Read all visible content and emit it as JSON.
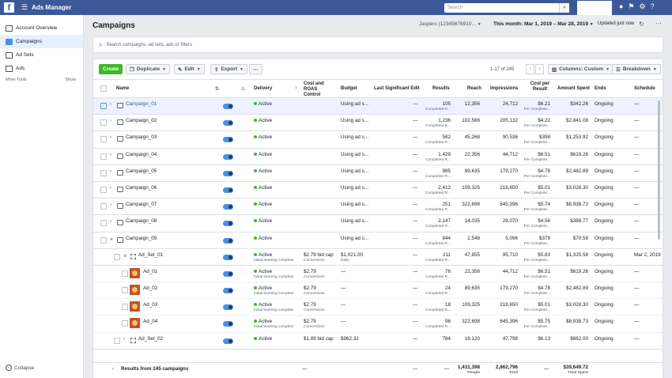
{
  "topbar": {
    "app_name": "Ads Manager",
    "search_placeholder": "Search"
  },
  "sidebar": {
    "items": [
      {
        "label": "Account Overview",
        "icon": "account-overview-icon"
      },
      {
        "label": "Campaigns",
        "icon": "campaigns-icon",
        "active": true
      },
      {
        "label": "Ad Sets",
        "icon": "ad-sets-icon"
      },
      {
        "label": "Ads",
        "icon": "ads-icon"
      }
    ],
    "more_tools": "More Tools",
    "show": "Show",
    "collapse": "Collapse"
  },
  "header": {
    "title": "Campaigns",
    "account": "Jaspers (12345678910...",
    "date_range": "This month: Mar 1, 2019 – Mar 28, 2019",
    "updated": "Updated just now"
  },
  "search": {
    "placeholder": "Search campaigns, ad sets, ads or filters"
  },
  "toolbar": {
    "create": "Create",
    "duplicate": "Duplicate",
    "edit": "Edit",
    "export": "Export",
    "pager": "1-17 of 245",
    "columns": "Columns: Custom",
    "breakdown": "Breakdown"
  },
  "columns": {
    "name": "Name",
    "delivery": "Delivery",
    "cost_roas": "Cost and ROAS Control",
    "budget": "Budget",
    "last_edit": "Last Significant Edit",
    "results": "Results",
    "reach": "Reach",
    "impressions": "Impressions",
    "cost_per_result": "Cost per Result",
    "amount_spent": "Amount Spent",
    "ends": "Ends",
    "schedule": "Schedule"
  },
  "rows": [
    {
      "type": "campaign",
      "name": "Campaign_01",
      "delivery": "Active",
      "cost": "",
      "cost_sub": "",
      "budget": "Using ad s...",
      "budget_sub": "",
      "last_edit": "—",
      "results": "105",
      "results_sub": "Completed R...",
      "reach": "12,356",
      "impressions": "24,712",
      "cpr": "$6.21",
      "cpr_sub": "Per Complete...",
      "spent": "$342.26",
      "ends": "Ongoing",
      "schedule": "—"
    },
    {
      "type": "campaign",
      "name": "Campaign_02",
      "delivery": "Active",
      "cost": "",
      "cost_sub": "",
      "budget": "Using ad s...",
      "budget_sub": "",
      "last_edit": "—",
      "results": "1,236",
      "results_sub": "Completed R...",
      "reach": "102,566",
      "impressions": "205,132",
      "cpr": "$4.22",
      "cpr_sub": "Per Complete...",
      "spent": "$2,841.08",
      "ends": "Ongoing",
      "schedule": "—"
    },
    {
      "type": "campaign",
      "name": "Campaign_03",
      "delivery": "Active",
      "cost": "",
      "cost_sub": "",
      "budget": "Using ad s...",
      "budget_sub": "",
      "last_edit": "—",
      "results": "582",
      "results_sub": "Completed R...",
      "reach": "45,268",
      "impressions": "90,536",
      "cpr": "$398",
      "cpr_sub": "Per Complete...",
      "spent": "$1,253.92",
      "ends": "Ongoing",
      "schedule": "—"
    },
    {
      "type": "campaign",
      "name": "Campaign_04",
      "delivery": "Active",
      "cost": "",
      "cost_sub": "",
      "budget": "Using ad s...",
      "budget_sub": "",
      "last_edit": "—",
      "results": "1,429",
      "results_sub": "Completed R...",
      "reach": "22,356",
      "impressions": "44,712",
      "cpr": "$6.51",
      "cpr_sub": "Per Complete...",
      "spent": "$619.26",
      "ends": "Ongoing",
      "schedule": "—"
    },
    {
      "type": "campaign",
      "name": "Campaign_05",
      "delivery": "Active",
      "cost": "",
      "cost_sub": "",
      "budget": "Using ad s...",
      "budget_sub": "",
      "last_edit": "—",
      "results": "985",
      "results_sub": "Completed R...",
      "reach": "89,635",
      "impressions": "179,270",
      "cpr": "$4.78",
      "cpr_sub": "Per Complete...",
      "spent": "$2,482.89",
      "ends": "Ongoing",
      "schedule": "—"
    },
    {
      "type": "campaign",
      "name": "Campaign_06",
      "delivery": "Active",
      "cost": "",
      "cost_sub": "",
      "budget": "Using ad s...",
      "budget_sub": "",
      "last_edit": "—",
      "results": "2,412",
      "results_sub": "Completed R...",
      "reach": "109,325",
      "impressions": "218,650",
      "cpr": "$5.01",
      "cpr_sub": "Per Complete...",
      "spent": "$3,028.30",
      "ends": "Ongoing",
      "schedule": "—"
    },
    {
      "type": "campaign",
      "name": "Campaign_07",
      "delivery": "Active",
      "cost": "",
      "cost_sub": "",
      "budget": "Using ad s...",
      "budget_sub": "",
      "last_edit": "—",
      "results": "251",
      "results_sub": "Completed R...",
      "reach": "322,698",
      "impressions": "645,396",
      "cpr": "$5.74",
      "cpr_sub": "Per Complete...",
      "spent": "$8,938.73",
      "ends": "Ongoing",
      "schedule": "—"
    },
    {
      "type": "campaign",
      "name": "Campaign_08",
      "delivery": "Active",
      "cost": "",
      "cost_sub": "",
      "budget": "Using ad s...",
      "budget_sub": "",
      "last_edit": "—",
      "results": "2,147",
      "results_sub": "Completed R...",
      "reach": "14,035",
      "impressions": "28,070",
      "cpr": "$4.56",
      "cpr_sub": "Per Complete...",
      "spent": "$388.77",
      "ends": "Ongoing",
      "schedule": "—"
    },
    {
      "type": "campaign",
      "name": "Campaign_09",
      "delivery": "Active",
      "cost": "",
      "cost_sub": "",
      "budget": "Using ad s...",
      "budget_sub": "",
      "last_edit": "—",
      "results": "844",
      "results_sub": "Completed R...",
      "reach": "2,548",
      "impressions": "5,096",
      "cpr": "$379",
      "cpr_sub": "Per Complete...",
      "spent": "$70.58",
      "ends": "Ongoing",
      "schedule": "—"
    },
    {
      "type": "adset",
      "name": "Ad_Set_01",
      "delivery": "Active",
      "delivery_sub": "Initial learning complete",
      "cost": "$2.79 bid cap",
      "cost_sub": "Conversions",
      "budget": "$1,021.00",
      "budget_sub": "Daily",
      "last_edit": "—",
      "results": "211",
      "results_sub": "Completed R...",
      "reach": "47,855",
      "impressions": "95,710",
      "cpr": "$5.83",
      "cpr_sub": "Per Complete...",
      "spent": "$1,325.58",
      "ends": "Ongoing",
      "schedule": "Mar 2, 2019"
    },
    {
      "type": "ad",
      "name": "Ad_01",
      "delivery": "Active",
      "delivery_sub": "Initial learning complete",
      "cost": "$2.79",
      "cost_sub": "Conversions",
      "budget": "—",
      "budget_sub": "",
      "last_edit": "—",
      "results": "76",
      "results_sub": "Completed R...",
      "reach": "22,356",
      "impressions": "44,712",
      "cpr": "$6.51",
      "cpr_sub": "Per Complete...",
      "spent": "$619.26",
      "ends": "Ongoing",
      "schedule": "—"
    },
    {
      "type": "ad",
      "name": "Ad_02",
      "delivery": "Active",
      "delivery_sub": "Initial learning complete",
      "cost": "$2.79",
      "cost_sub": "Conversions",
      "budget": "—",
      "budget_sub": "",
      "last_edit": "—",
      "results": "24",
      "results_sub": "Completed R...",
      "reach": "89,635",
      "impressions": "179,270",
      "cpr": "$4.78",
      "cpr_sub": "Per Complete...",
      "spent": "$2,482.89",
      "ends": "Ongoing",
      "schedule": "—"
    },
    {
      "type": "ad",
      "name": "Ad_03",
      "delivery": "Active",
      "delivery_sub": "Initial learning complete",
      "cost": "$2.79",
      "cost_sub": "Conversions",
      "budget": "—",
      "budget_sub": "",
      "last_edit": "—",
      "results": "18",
      "results_sub": "Completed R...",
      "reach": "109,325",
      "impressions": "218,650",
      "cpr": "$5.01",
      "cpr_sub": "Per Complete...",
      "spent": "$3,028.30",
      "ends": "Ongoing",
      "schedule": "—"
    },
    {
      "type": "ad",
      "name": "Ad_04",
      "delivery": "Active",
      "delivery_sub": "Initial learning complete",
      "cost": "$2.79",
      "cost_sub": "Conversions",
      "budget": "—",
      "budget_sub": "",
      "last_edit": "—",
      "results": "96",
      "results_sub": "Completed R...",
      "reach": "322,698",
      "impressions": "645,396",
      "cpr": "$5.75",
      "cpr_sub": "Per Complete...",
      "spent": "$8,938.73",
      "ends": "Ongoing",
      "schedule": "—"
    },
    {
      "type": "adset",
      "name": "Ad_Set_02",
      "delivery": "Active",
      "delivery_sub": "",
      "cost": "$1.89 bid cap",
      "cost_sub": "",
      "budget": "$962.32",
      "budget_sub": "",
      "last_edit": "—",
      "results": "784",
      "results_sub": "",
      "reach": "18,120",
      "impressions": "47,798",
      "cpr": "$6.13",
      "cpr_sub": "",
      "spent": "$662.00",
      "ends": "Ongoing",
      "schedule": "—"
    }
  ],
  "totals": {
    "label": "Results from 245 campaigns",
    "cost": "—",
    "last_edit": "—",
    "results": "—",
    "reach": "1,431,398",
    "reach_sub": "People",
    "impressions": "2,862,796",
    "impressions_sub": "Total",
    "cpr": "—",
    "spent": "$39,649.72",
    "spent_sub": "Total Spent"
  }
}
